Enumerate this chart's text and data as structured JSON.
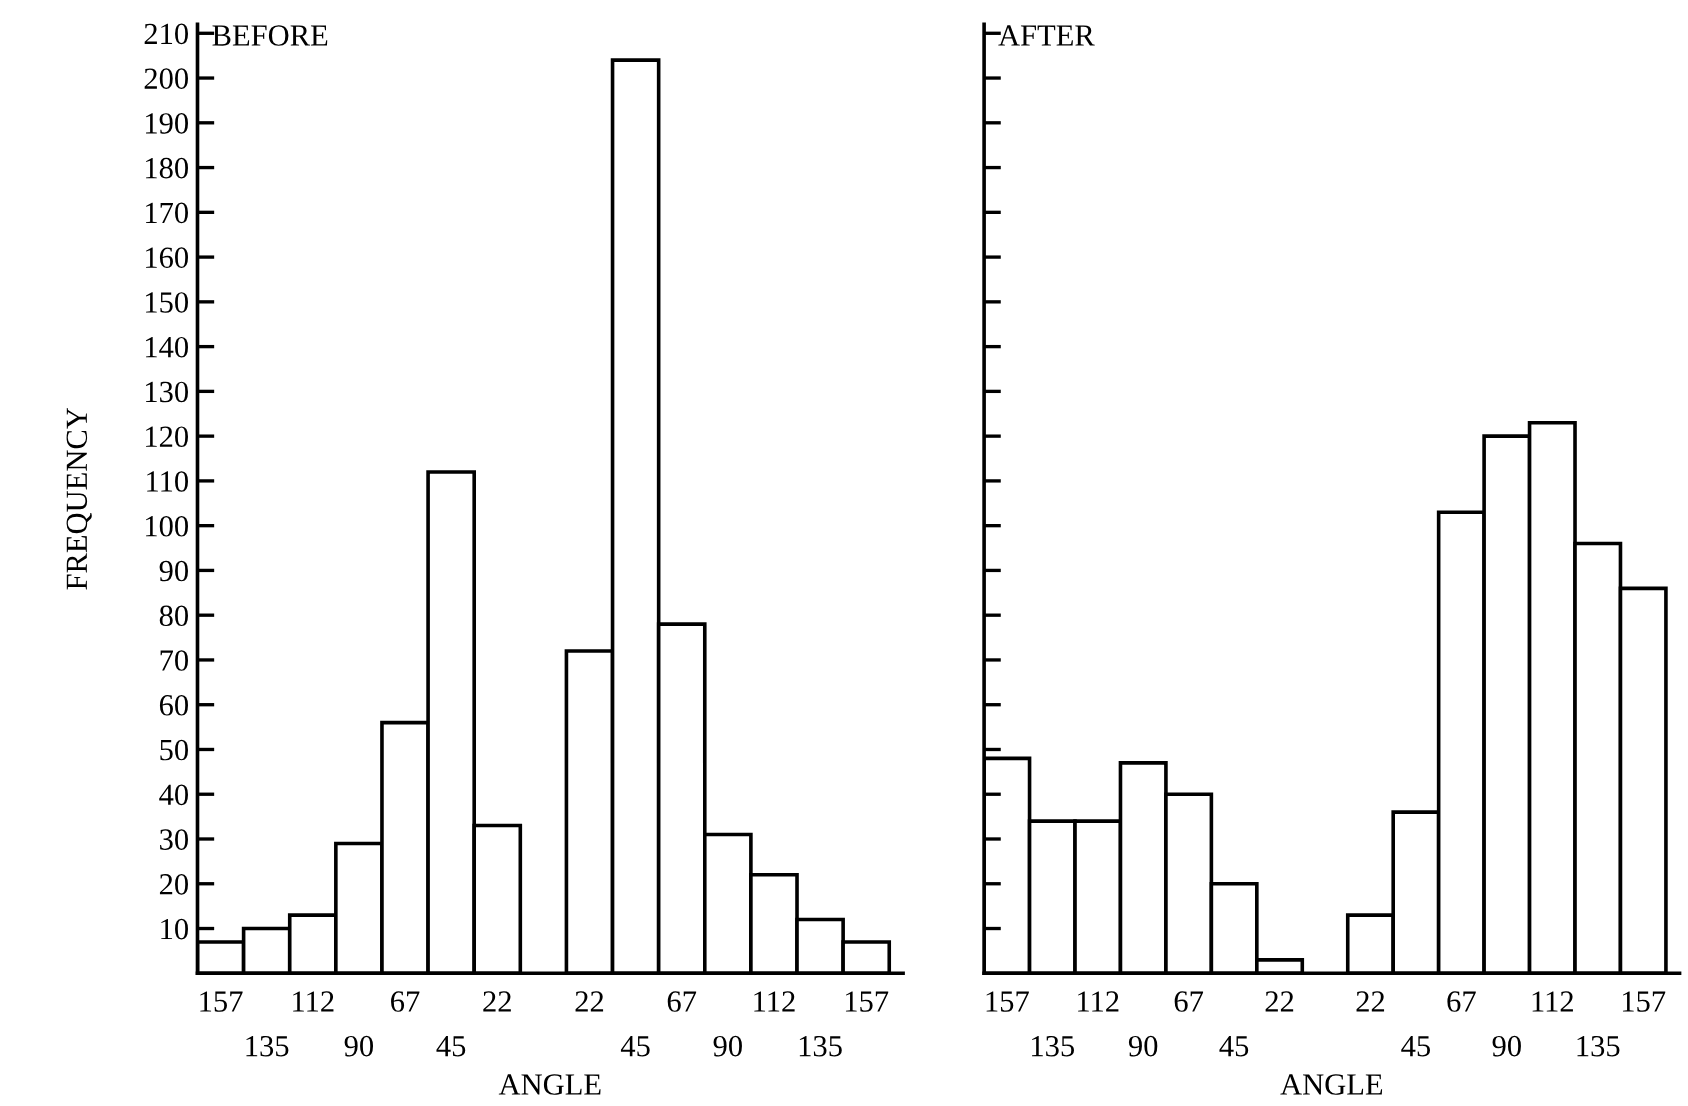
{
  "chart_data": [
    {
      "type": "bar",
      "title": "BEFORE",
      "xlabel": "ANGLE",
      "ylabel": "FREQUENCY",
      "categories": [
        "157",
        "135",
        "112",
        "90",
        "67",
        "45",
        "22",
        null,
        "22",
        "45",
        "67",
        "90",
        "112",
        "135",
        "157"
      ],
      "values": [
        7,
        10,
        13,
        29,
        56,
        112,
        33,
        null,
        72,
        204,
        78,
        31,
        22,
        12,
        7
      ],
      "color": "#ffffff",
      "ylim": [
        0,
        212
      ],
      "yticks": [
        10,
        20,
        30,
        40,
        50,
        60,
        70,
        80,
        90,
        100,
        110,
        120,
        130,
        140,
        150,
        160,
        170,
        180,
        190,
        200,
        210
      ],
      "grid": false
    },
    {
      "type": "bar",
      "title": "AFTER",
      "xlabel": "ANGLE",
      "categories": [
        "157",
        "135",
        "112",
        "90",
        "67",
        "45",
        "22",
        null,
        "22",
        "45",
        "67",
        "90",
        "112",
        "135",
        "157"
      ],
      "values": [
        48,
        34,
        34,
        47,
        40,
        20,
        3,
        null,
        13,
        36,
        103,
        120,
        123,
        96,
        86
      ],
      "color": "#ffffff",
      "ylim": [
        0,
        212
      ],
      "yticks": [
        10,
        20,
        30,
        40,
        50,
        60,
        70,
        80,
        90,
        100,
        110,
        120,
        130,
        140,
        150,
        160,
        170,
        180,
        190,
        200,
        210
      ],
      "grid": false,
      "tick_labels": "x"
    }
  ]
}
